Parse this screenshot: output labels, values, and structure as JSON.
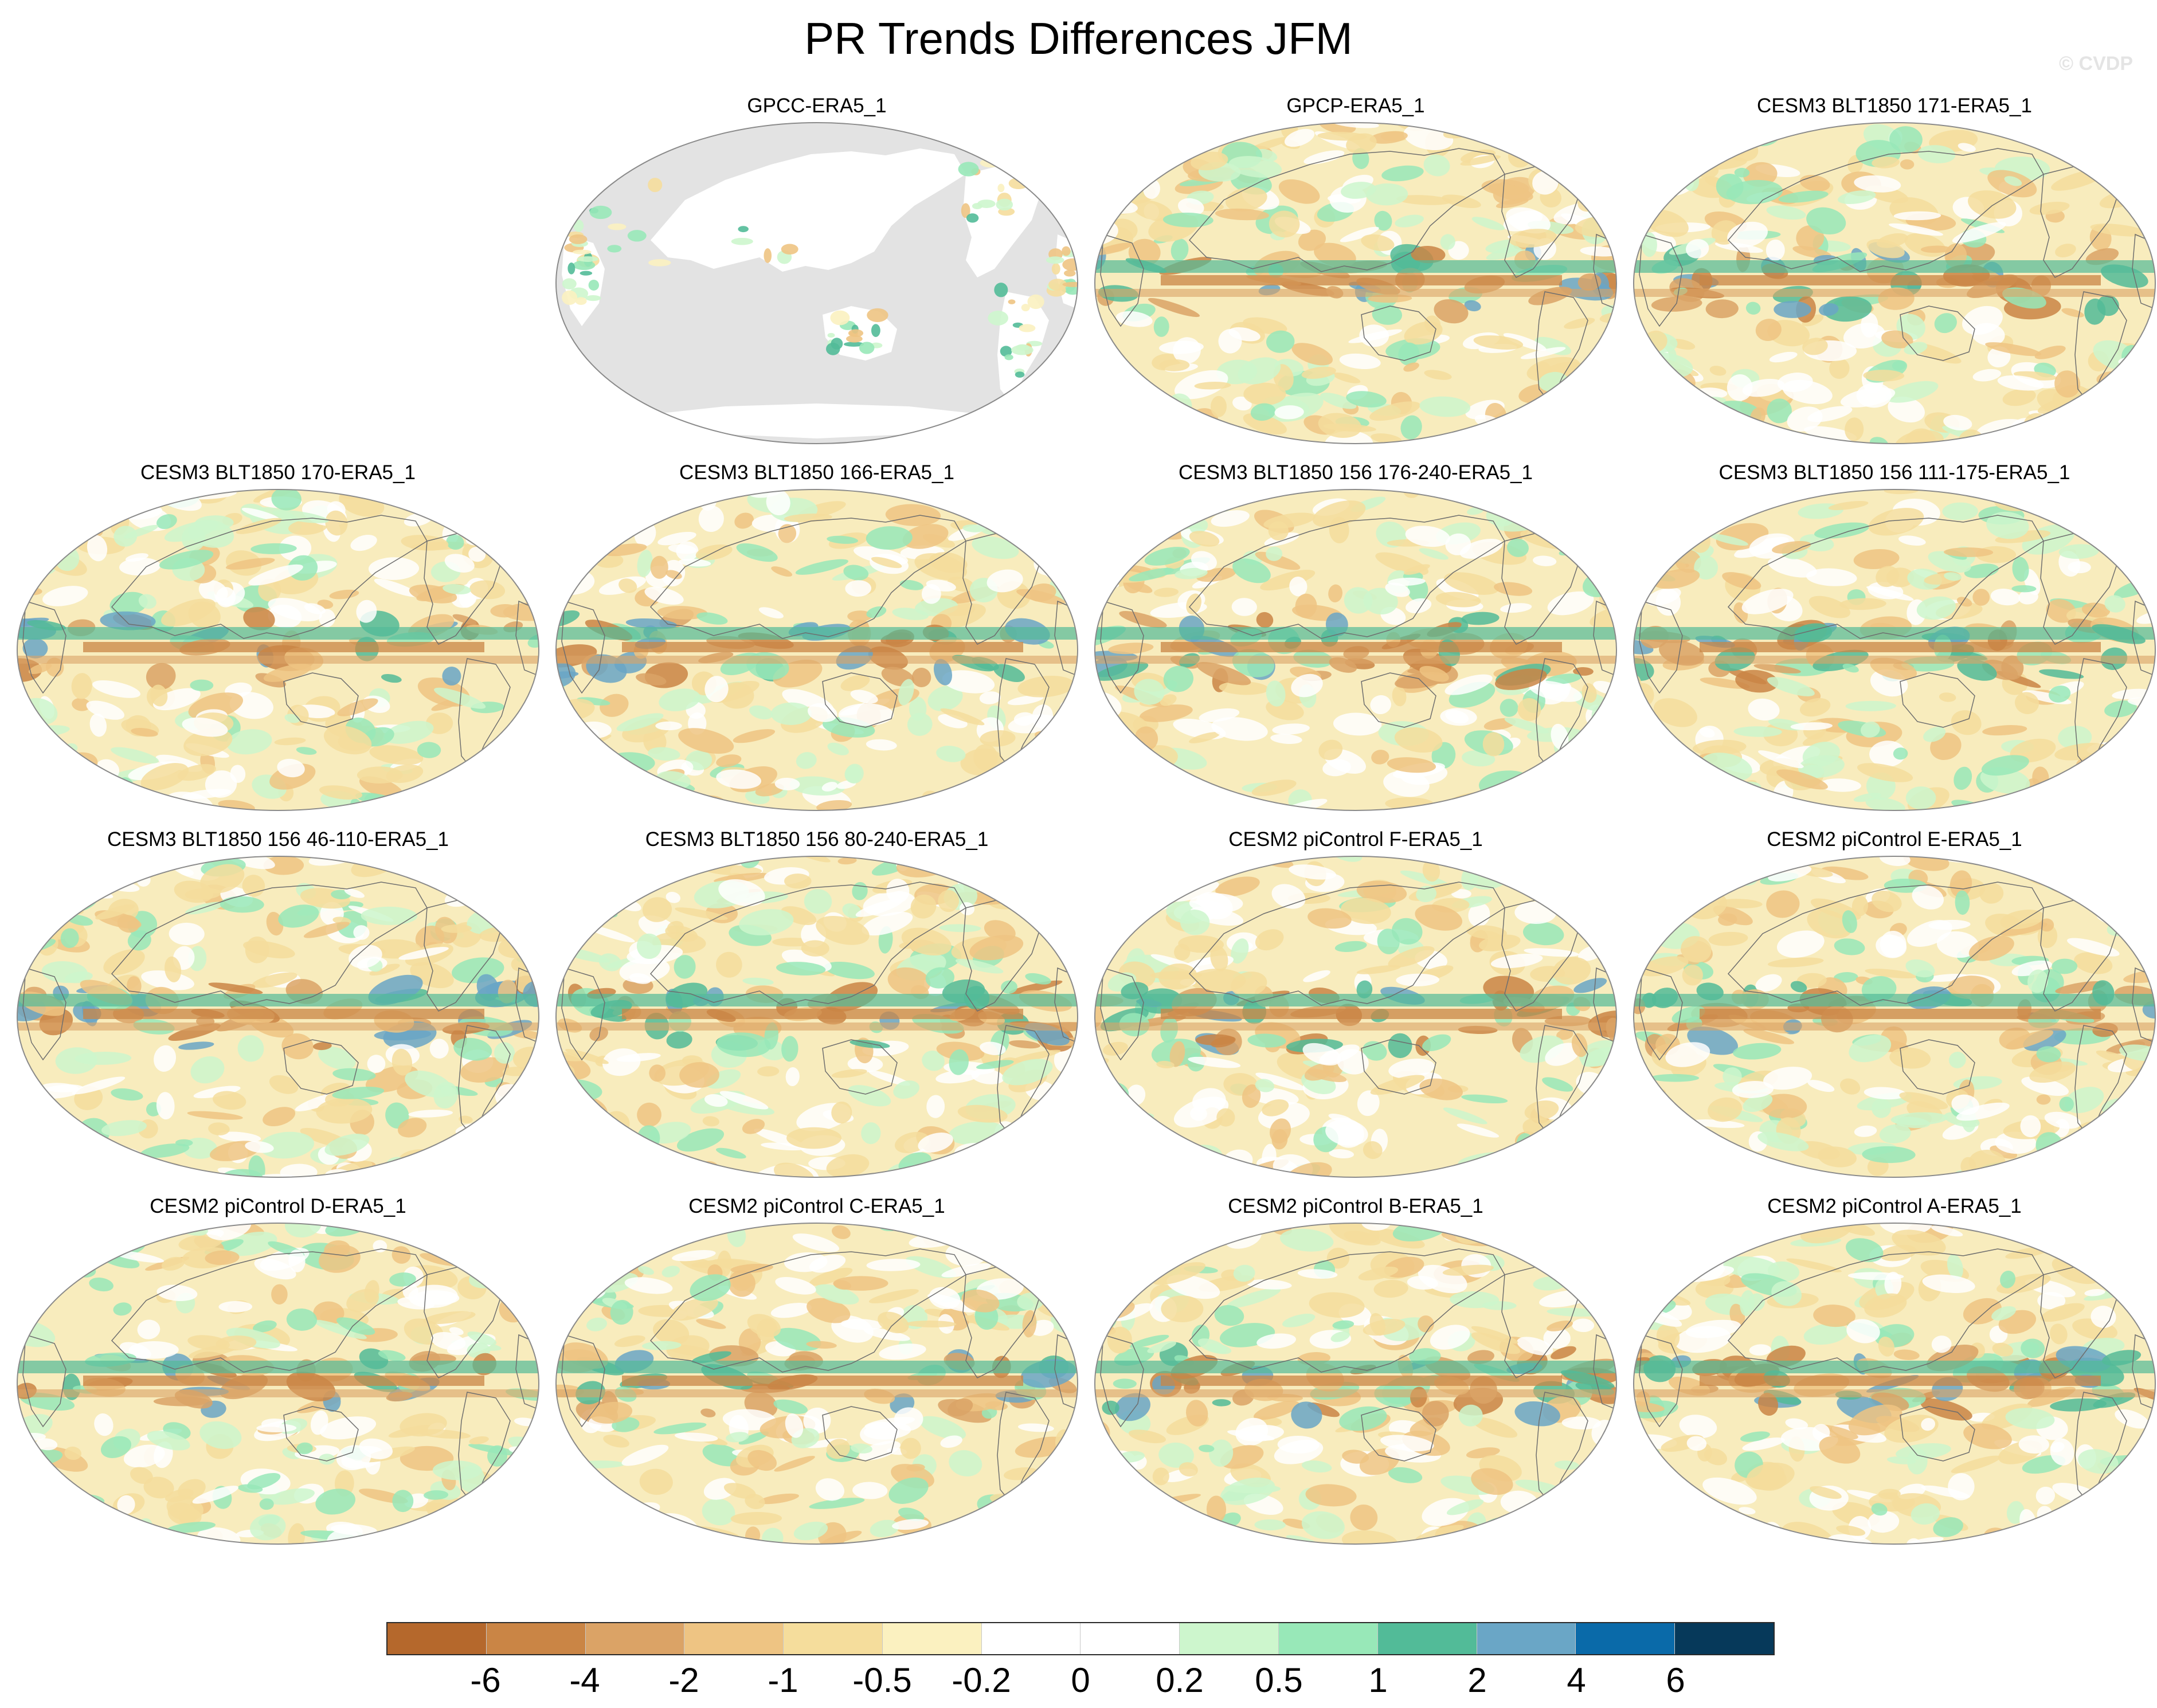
{
  "title": "PR Trends Differences JFM",
  "watermark": "© CVDP",
  "land_color": "#e3e3e3",
  "panels": [
    {
      "title": "GPCC-ERA5_1",
      "type": "land-only"
    },
    {
      "title": "GPCP-ERA5_1",
      "type": "full"
    },
    {
      "title": "CESM3 BLT1850 171-ERA5_1",
      "type": "full"
    },
    {
      "title": "CESM3 BLT1850 170-ERA5_1",
      "type": "full"
    },
    {
      "title": "CESM3 BLT1850 166-ERA5_1",
      "type": "full"
    },
    {
      "title": "CESM3 BLT1850 156 176-240-ERA5_1",
      "type": "full"
    },
    {
      "title": "CESM3 BLT1850 156 111-175-ERA5_1",
      "type": "full"
    },
    {
      "title": "CESM3 BLT1850 156 46-110-ERA5_1",
      "type": "full"
    },
    {
      "title": "CESM3 BLT1850 156 80-240-ERA5_1",
      "type": "full"
    },
    {
      "title": "CESM2 piControl F-ERA5_1",
      "type": "full"
    },
    {
      "title": "CESM2 piControl E-ERA5_1",
      "type": "full"
    },
    {
      "title": "CESM2 piControl D-ERA5_1",
      "type": "full"
    },
    {
      "title": "CESM2 piControl C-ERA5_1",
      "type": "full"
    },
    {
      "title": "CESM2 piControl B-ERA5_1",
      "type": "full"
    },
    {
      "title": "CESM2 piControl A-ERA5_1",
      "type": "full"
    }
  ],
  "colorbar": {
    "colors": [
      "#b5682c",
      "#ca8545",
      "#dba366",
      "#eec483",
      "#f5dd9c",
      "#fbf1c0",
      "#ffffff",
      "#ffffff",
      "#cdf6cd",
      "#98e8b8",
      "#52bb98",
      "#6aa6c6",
      "#0a6aa9",
      "#06395a"
    ],
    "labels": [
      "-6",
      "-4",
      "-2",
      "-1",
      "-0.5",
      "-0.2",
      "0",
      "0.2",
      "0.5",
      "1",
      "2",
      "4",
      "6"
    ]
  }
}
